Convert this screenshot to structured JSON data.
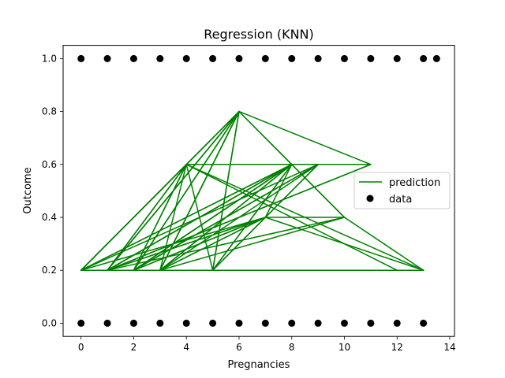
{
  "chart_data": {
    "type": "line",
    "title": "Regression (KNN)",
    "xlabel": "Pregnancies",
    "ylabel": "Outcome",
    "xlim": [
      -0.68,
      14.18
    ],
    "ylim": [
      -0.05,
      1.05
    ],
    "x_ticks": [
      0,
      2,
      4,
      6,
      8,
      10,
      12,
      14
    ],
    "y_ticks": [
      0.0,
      0.2,
      0.4,
      0.6,
      0.8,
      1.0
    ],
    "x_tick_labels": [
      "0",
      "2",
      "4",
      "6",
      "8",
      "10",
      "12",
      "14"
    ],
    "y_tick_labels": [
      "0.0",
      "0.2",
      "0.4",
      "0.6",
      "0.8",
      "1.0"
    ],
    "grid": false,
    "legend": {
      "location": "center-right",
      "entries": [
        {
          "label": "prediction",
          "kind": "line",
          "color": "#008000"
        },
        {
          "label": "data",
          "kind": "marker",
          "color": "#000000"
        }
      ]
    },
    "series": [
      {
        "name": "prediction",
        "kind": "line",
        "color": "#008000",
        "points": [
          [
            0,
            0.2
          ],
          [
            6,
            0.8
          ],
          [
            1,
            0.2
          ],
          [
            4,
            0.6
          ],
          [
            0,
            0.2
          ],
          [
            9,
            0.6
          ],
          [
            2,
            0.2
          ],
          [
            7,
            0.4
          ],
          [
            3,
            0.2
          ],
          [
            6,
            0.8
          ],
          [
            5,
            0.2
          ],
          [
            8,
            0.6
          ],
          [
            1,
            0.2
          ],
          [
            11,
            0.6
          ],
          [
            4,
            0.6
          ],
          [
            13,
            0.2
          ],
          [
            0,
            0.2
          ],
          [
            8,
            0.6
          ],
          [
            2,
            0.2
          ],
          [
            6,
            0.8
          ],
          [
            4,
            0.6
          ],
          [
            12,
            0.2
          ],
          [
            1,
            0.2
          ],
          [
            7,
            0.4
          ],
          [
            10,
            0.4
          ],
          [
            3,
            0.2
          ],
          [
            9,
            0.6
          ],
          [
            5,
            0.2
          ],
          [
            6,
            0.8
          ],
          [
            0,
            0.2
          ],
          [
            4,
            0.6
          ],
          [
            2,
            0.2
          ],
          [
            8,
            0.6
          ],
          [
            7,
            0.4
          ],
          [
            3,
            0.2
          ],
          [
            6,
            0.8
          ],
          [
            1,
            0.2
          ],
          [
            10,
            0.4
          ],
          [
            8,
            0.6
          ],
          [
            4,
            0.6
          ],
          [
            5,
            0.2
          ],
          [
            9,
            0.6
          ],
          [
            2,
            0.2
          ],
          [
            4,
            0.6
          ],
          [
            3,
            0.2
          ],
          [
            8,
            0.6
          ],
          [
            1,
            0.2
          ],
          [
            6,
            0.8
          ],
          [
            8,
            0.6
          ],
          [
            0,
            0.2
          ],
          [
            13,
            0.2
          ],
          [
            10,
            0.4
          ],
          [
            6,
            0.8
          ],
          [
            2,
            0.2
          ],
          [
            9,
            0.6
          ],
          [
            4,
            0.6
          ],
          [
            1,
            0.2
          ],
          [
            8,
            0.6
          ],
          [
            5,
            0.2
          ],
          [
            13,
            0.2
          ],
          [
            7,
            0.4
          ],
          [
            1,
            0.2
          ],
          [
            11,
            0.6
          ],
          [
            6,
            0.8
          ],
          [
            3,
            0.2
          ],
          [
            8,
            0.6
          ],
          [
            2,
            0.2
          ],
          [
            7,
            0.4
          ],
          [
            0,
            0.2
          ]
        ]
      },
      {
        "name": "data",
        "kind": "scatter",
        "color": "#000000",
        "points": [
          [
            0,
            1
          ],
          [
            1,
            1
          ],
          [
            2,
            1
          ],
          [
            3,
            1
          ],
          [
            4,
            1
          ],
          [
            5,
            1
          ],
          [
            6,
            1
          ],
          [
            7,
            1
          ],
          [
            8,
            1
          ],
          [
            9,
            1
          ],
          [
            10,
            1
          ],
          [
            11,
            1
          ],
          [
            12,
            1
          ],
          [
            13,
            1
          ],
          [
            13.5,
            1
          ],
          [
            0,
            0
          ],
          [
            1,
            0
          ],
          [
            2,
            0
          ],
          [
            3,
            0
          ],
          [
            4,
            0
          ],
          [
            5,
            0
          ],
          [
            6,
            0
          ],
          [
            7,
            0
          ],
          [
            8,
            0
          ],
          [
            9,
            0
          ],
          [
            10,
            0
          ],
          [
            11,
            0
          ],
          [
            12,
            0
          ],
          [
            13,
            0
          ]
        ]
      }
    ]
  }
}
